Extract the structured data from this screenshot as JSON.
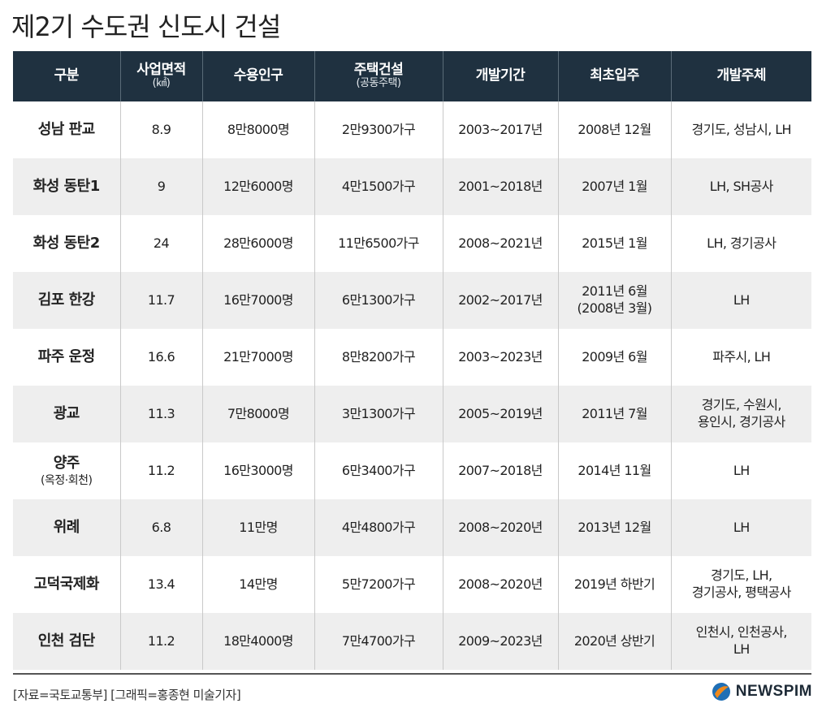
{
  "title": "제2기 수도권 신도시 건설",
  "table": {
    "headers": [
      {
        "label": "구분",
        "sub": ""
      },
      {
        "label": "사업면적",
        "sub": "(㎢)"
      },
      {
        "label": "수용인구",
        "sub": ""
      },
      {
        "label": "주택건설",
        "sub": "(공동주택)"
      },
      {
        "label": "개발기간",
        "sub": ""
      },
      {
        "label": "최초입주",
        "sub": ""
      },
      {
        "label": "개발주체",
        "sub": ""
      }
    ],
    "rows": [
      {
        "name": "성남 판교",
        "name_sub": "",
        "area": "8.9",
        "population": "8만8000명",
        "housing": "2만9300가구",
        "period": "2003~2017년",
        "first_move_in": "2008년 12월",
        "first_move_in_2": "",
        "developer": "경기도, 성남시, LH",
        "developer_2": ""
      },
      {
        "name": "화성 동탄1",
        "name_sub": "",
        "area": "9",
        "population": "12만6000명",
        "housing": "4만1500가구",
        "period": "2001~2018년",
        "first_move_in": "2007년 1월",
        "first_move_in_2": "",
        "developer": "LH, SH공사",
        "developer_2": ""
      },
      {
        "name": "화성 동탄2",
        "name_sub": "",
        "area": "24",
        "population": "28만6000명",
        "housing": "11만6500가구",
        "period": "2008~2021년",
        "first_move_in": "2015년 1월",
        "first_move_in_2": "",
        "developer": "LH, 경기공사",
        "developer_2": ""
      },
      {
        "name": "김포 한강",
        "name_sub": "",
        "area": "11.7",
        "population": "16만7000명",
        "housing": "6만1300가구",
        "period": "2002~2017년",
        "first_move_in": "2011년 6월",
        "first_move_in_2": "(2008년 3월)",
        "developer": "LH",
        "developer_2": ""
      },
      {
        "name": "파주 운정",
        "name_sub": "",
        "area": "16.6",
        "population": "21만7000명",
        "housing": "8만8200가구",
        "period": "2003~2023년",
        "first_move_in": "2009년 6월",
        "first_move_in_2": "",
        "developer": "파주시, LH",
        "developer_2": ""
      },
      {
        "name": "광교",
        "name_sub": "",
        "area": "11.3",
        "population": "7만8000명",
        "housing": "3만1300가구",
        "period": "2005~2019년",
        "first_move_in": "2011년 7월",
        "first_move_in_2": "",
        "developer": "경기도, 수원시,",
        "developer_2": "용인시, 경기공사"
      },
      {
        "name": "양주",
        "name_sub": "(옥정·회천)",
        "area": "11.2",
        "population": "16만3000명",
        "housing": "6만3400가구",
        "period": "2007~2018년",
        "first_move_in": "2014년 11월",
        "first_move_in_2": "",
        "developer": "LH",
        "developer_2": ""
      },
      {
        "name": "위례",
        "name_sub": "",
        "area": "6.8",
        "population": "11만명",
        "housing": "4만4800가구",
        "period": "2008~2020년",
        "first_move_in": "2013년 12월",
        "first_move_in_2": "",
        "developer": "LH",
        "developer_2": ""
      },
      {
        "name": "고덕국제화",
        "name_sub": "",
        "area": "13.4",
        "population": "14만명",
        "housing": "5만7200가구",
        "period": "2008~2020년",
        "first_move_in": "2019년 하반기",
        "first_move_in_2": "",
        "developer": "경기도, LH,",
        "developer_2": "경기공사, 평택공사"
      },
      {
        "name": "인천 검단",
        "name_sub": "",
        "area": "11.2",
        "population": "18만4000명",
        "housing": "7만4700가구",
        "period": "2009~2023년",
        "first_move_in": "2020년 상반기",
        "first_move_in_2": "",
        "developer": "인천시, 인천공사,",
        "developer_2": "LH"
      }
    ]
  },
  "footer": {
    "source": "[자료=국토교통부] [그래픽=홍종현 미술기자]",
    "brand": "NEWSPIM",
    "brand_icon": "newspim-logo-icon",
    "brand_colors": {
      "blue": "#1f6fb5",
      "orange": "#f08a1c",
      "text": "#1d2a36"
    }
  },
  "colors": {
    "header_bg": "#1f3140",
    "row_alt_bg": "#eeeeee"
  }
}
